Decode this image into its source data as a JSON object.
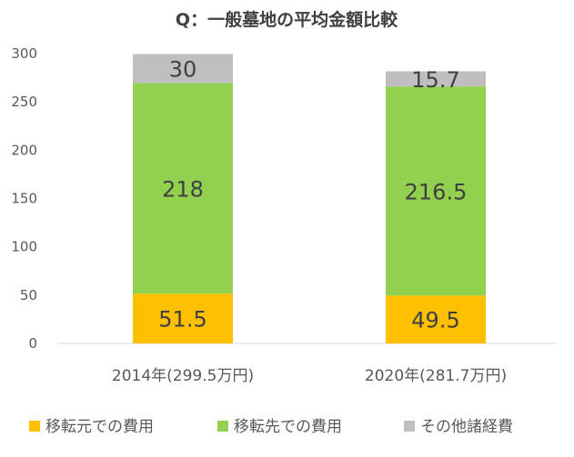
{
  "chart_data": {
    "type": "bar",
    "stacked": true,
    "title": "Q：一般墓地の平均金額比較",
    "categories": [
      "2014年(299.5万円)",
      "2020年(281.7万円)"
    ],
    "series": [
      {
        "name": "移転元での費用",
        "values": [
          51.5,
          49.5
        ],
        "color": "#FFC000"
      },
      {
        "name": "移転先での費用",
        "values": [
          218,
          216.5
        ],
        "color": "#92D050"
      },
      {
        "name": "その他諸経費",
        "values": [
          30,
          15.7
        ],
        "color": "#BFBFBF"
      }
    ],
    "data_labels": [
      [
        "51.5",
        "49.5"
      ],
      [
        "218",
        "216.5"
      ],
      [
        "30",
        "15.7"
      ]
    ],
    "ylim": [
      0,
      300
    ],
    "yticks": [
      "0",
      "50",
      "100",
      "150",
      "200",
      "250",
      "300"
    ],
    "grid": false,
    "legend": "bottom"
  }
}
